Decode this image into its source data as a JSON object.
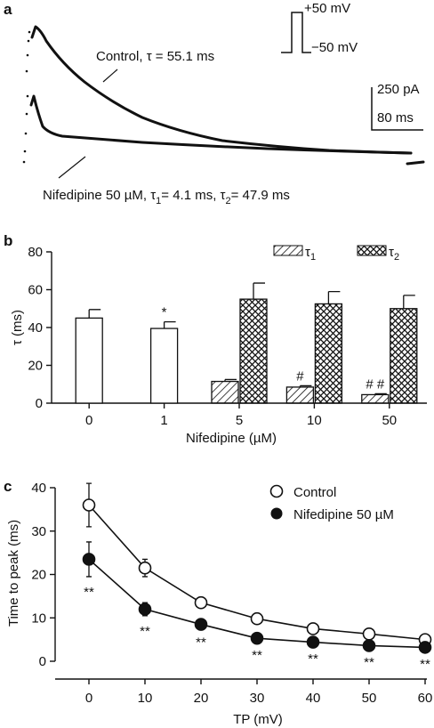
{
  "chart_data": [
    {
      "panel": "a",
      "type": "line",
      "annotations": {
        "control": "Control, τ = 55.1 ms",
        "nif": "Nifedipine 50 µM, τ",
        "nif_sub1": "1",
        "nif_mid": "= 4.1 ms,  τ",
        "nif_sub2": "2",
        "nif_end": "= 47.9 ms",
        "pulse_top": "+50 mV",
        "pulse_bottom": "−50 mV",
        "scale_y": "250 pA",
        "scale_x": "80 ms"
      },
      "series": [
        {
          "name": "Control",
          "tau_ms": 55.1
        },
        {
          "name": "Nifedipine 50 µM",
          "tau1_ms": 4.1,
          "tau2_ms": 47.9
        }
      ]
    },
    {
      "panel": "b",
      "type": "bar",
      "ylabel": "τ (ms)",
      "xlabel": "Nifedipine (µM)",
      "categories": [
        "0",
        "1",
        "5",
        "10",
        "50"
      ],
      "ylim": [
        0,
        80
      ],
      "yticks": [
        0,
        20,
        40,
        60,
        80
      ],
      "legend": {
        "tau1": "τ",
        "tau1_sub": "1",
        "tau2": "τ",
        "tau2_sub": "2"
      },
      "legend_position": "top-right",
      "series": [
        {
          "key": "single",
          "values": [
            45,
            39.5,
            null,
            null,
            null
          ],
          "errors": [
            4.5,
            3.5,
            null,
            null,
            null
          ],
          "style": "open"
        },
        {
          "key": "tau1",
          "values": [
            null,
            null,
            11.5,
            8.5,
            4.5
          ],
          "errors": [
            null,
            null,
            1,
            0.7,
            0.5
          ],
          "style": "hatch"
        },
        {
          "key": "tau2",
          "values": [
            null,
            null,
            55,
            52.5,
            50
          ],
          "errors": [
            null,
            null,
            8.5,
            6.5,
            7
          ],
          "style": "crosshatch"
        }
      ],
      "markers": [
        {
          "category": "1",
          "series": "single",
          "text": "*"
        },
        {
          "category": "10",
          "series": "tau1",
          "text": "#"
        },
        {
          "category": "50",
          "series": "tau1",
          "text": "# #"
        }
      ]
    },
    {
      "panel": "c",
      "type": "line",
      "ylabel": "Time to peak (ms)",
      "xlabel": "TP (mV)",
      "x": [
        0,
        10,
        20,
        30,
        40,
        50,
        60
      ],
      "xlim": [
        0,
        60
      ],
      "ylim": [
        0,
        40
      ],
      "yticks": [
        0,
        10,
        20,
        30,
        40
      ],
      "legend_position": "top-right",
      "series": [
        {
          "name": "Control",
          "values": [
            36,
            21.5,
            13.5,
            9.8,
            7.5,
            6.3,
            5
          ],
          "errors": [
            5,
            2,
            0.8,
            0.6,
            0.5,
            0.4,
            0.3
          ],
          "marker": "open-circle"
        },
        {
          "name": "Nifedipine 50 µM",
          "values": [
            23.5,
            12,
            8.5,
            5.3,
            4.4,
            3.6,
            3.2
          ],
          "errors": [
            4,
            1.5,
            0.6,
            0.4,
            0.3,
            0.3,
            0.3
          ],
          "marker": "filled-circle"
        }
      ],
      "markers": [
        {
          "x": 0,
          "text": "**"
        },
        {
          "x": 10,
          "text": "**"
        },
        {
          "x": 20,
          "text": "**"
        },
        {
          "x": 30,
          "text": "**"
        },
        {
          "x": 40,
          "text": "**"
        },
        {
          "x": 50,
          "text": "**"
        },
        {
          "x": 60,
          "text": "**"
        }
      ]
    }
  ],
  "panels": {
    "a": "a",
    "b": "b",
    "c": "c"
  }
}
